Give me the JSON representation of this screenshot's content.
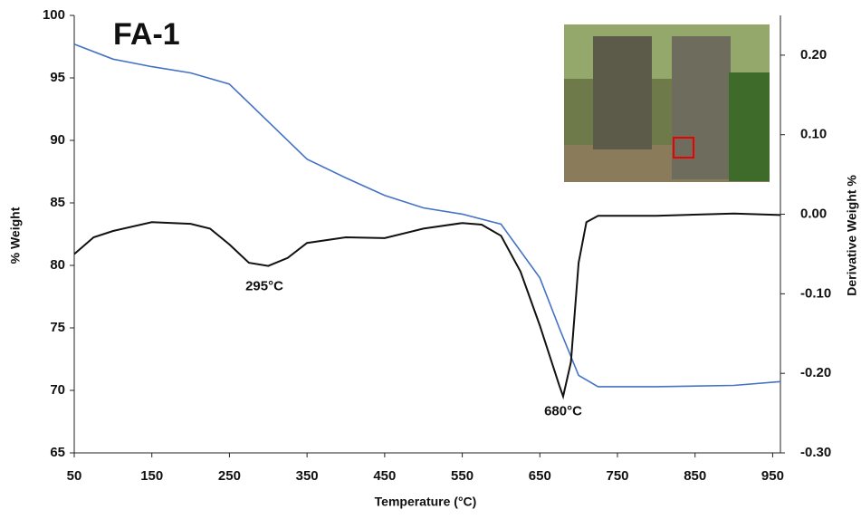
{
  "chart_data": {
    "type": "line",
    "title": "FA-1",
    "x_label": "Temperature (°C)",
    "y_label": "% Weight",
    "y2_label": "Derivative Weight %",
    "xlim": [
      50,
      960
    ],
    "xticks": [
      50,
      150,
      250,
      350,
      450,
      550,
      650,
      750,
      850,
      950
    ],
    "ylim": [
      65,
      100
    ],
    "yticks": [
      65,
      70,
      75,
      80,
      85,
      90,
      95,
      100
    ],
    "y2lim": [
      -0.3,
      0.25
    ],
    "y2ticks": [
      {
        "value": -0.3,
        "label": "-0.30"
      },
      {
        "value": -0.2,
        "label": "-0.20"
      },
      {
        "value": -0.1,
        "label": "-0.10"
      },
      {
        "value": 0,
        "label": "0.00"
      },
      {
        "value": 0.1,
        "label": "0.10"
      },
      {
        "value": 0.2,
        "label": "0.20"
      }
    ],
    "series": [
      {
        "name": "% Weight",
        "color": "#4472c4",
        "x": [
          50,
          100,
          150,
          200,
          250,
          300,
          350,
          400,
          450,
          500,
          550,
          600,
          650,
          675,
          700,
          725,
          800,
          900,
          960
        ],
        "values": [
          97.7,
          96.5,
          95.9,
          95.4,
          94.5,
          91.5,
          88.5,
          87,
          85.6,
          84.6,
          84.1,
          83.3,
          79,
          75,
          71.2,
          70.3,
          70.3,
          70.4,
          70.7
        ]
      },
      {
        "name": "Derivative Weight %",
        "color": "#111111",
        "axis": "y2",
        "x": [
          50,
          75,
          100,
          150,
          200,
          225,
          250,
          275,
          300,
          325,
          350,
          400,
          450,
          500,
          550,
          575,
          600,
          625,
          650,
          675,
          680,
          690,
          700,
          710,
          725,
          800,
          900,
          960
        ],
        "values": [
          -0.05,
          -0.029,
          -0.021,
          -0.01,
          -0.012,
          -0.018,
          -0.038,
          -0.061,
          -0.065,
          -0.055,
          -0.036,
          -0.029,
          -0.03,
          -0.018,
          -0.011,
          -0.013,
          -0.027,
          -0.072,
          -0.14,
          -0.215,
          -0.229,
          -0.186,
          -0.061,
          -0.01,
          -0.002,
          -0.002,
          0.001,
          -0.001
        ]
      }
    ],
    "annotations": [
      {
        "text": "295°C",
        "x": 295,
        "y": 78.3
      },
      {
        "text": "680°C",
        "x": 680,
        "y": 68.3
      }
    ]
  }
}
